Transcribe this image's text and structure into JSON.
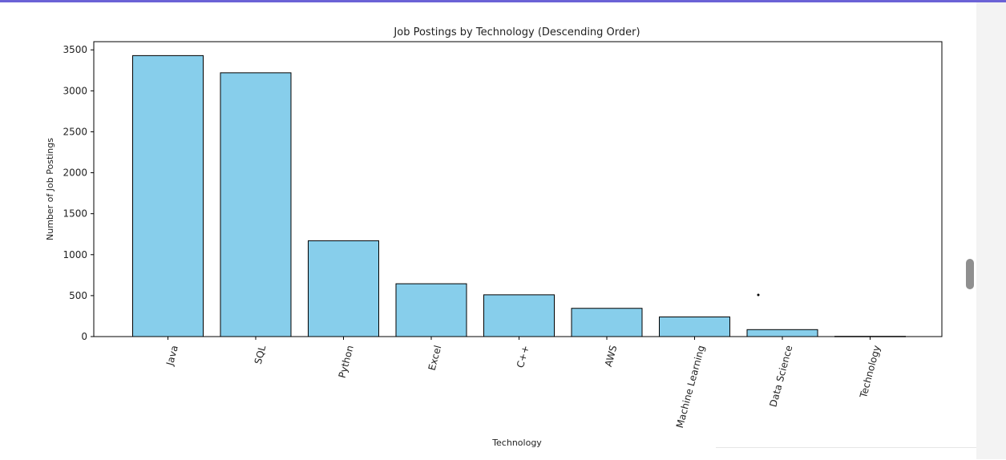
{
  "window": {
    "accent_color": "#6b62d6"
  },
  "chart_data": {
    "type": "bar",
    "title": "Job Postings by Technology (Descending Order)",
    "xlabel": "Technology",
    "ylabel": "Number of Job Postings",
    "categories": [
      "Java",
      "SQL",
      "Python",
      "Excel",
      "C++",
      "AWS",
      "Machine Learning",
      "Data Science",
      "Technology"
    ],
    "values": [
      3430,
      3220,
      1170,
      645,
      510,
      345,
      240,
      85,
      3
    ],
    "ylim": [
      0,
      3600
    ],
    "yticks": [
      0,
      500,
      1000,
      1500,
      2000,
      2500,
      3000,
      3500
    ],
    "ytick_labels": [
      "0",
      "500",
      "1000",
      "1500",
      "2000",
      "2500",
      "3000",
      "3500"
    ],
    "bar_color": "#87ceeb",
    "edge_color": "#000000",
    "grid": false,
    "legend": "none"
  }
}
